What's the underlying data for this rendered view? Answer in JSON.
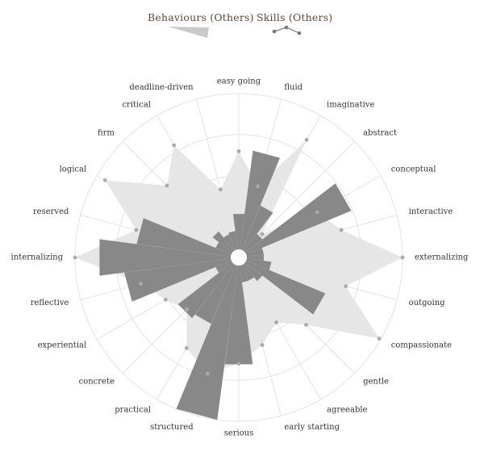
{
  "legend": {
    "behaviours_label": "Behaviours (Others)",
    "skills_label": "Skills (Others)"
  },
  "colors": {
    "area": "#e6e6e6",
    "bar": "#888888",
    "dot": "#aaaaaa",
    "grid": "#e3e3e3",
    "text": "#333333"
  },
  "chart_data": {
    "type": "radar",
    "axes": [
      "easy going",
      "fluid",
      "imaginative",
      "abstract",
      "conceptual",
      "interactive",
      "externalizing",
      "outgoing",
      "compassionate",
      "gentle",
      "agreeable",
      "early starting",
      "serious",
      "structured",
      "practical",
      "concrete",
      "experiential",
      "reflective",
      "internalizing",
      "reserved",
      "logical",
      "firm",
      "critical",
      "deadline-driven"
    ],
    "rmax": 10,
    "rings": 4,
    "series": [
      {
        "name": "Behaviours (Others)",
        "kind": "area",
        "values": [
          6.3,
          4.2,
          8.2,
          1.6,
          5.3,
          6.3,
          10.0,
          6.6,
          9.9,
          5.6,
          4.3,
          5.3,
          6.3,
          7.2,
          6.2,
          4.2,
          4.9,
          6.0,
          10.0,
          6.3,
          9.4,
          6.0,
          7.8,
          4.0
        ]
      },
      {
        "name": "Skills (Others)",
        "kind": "bar",
        "values": [
          2.3,
          6.4,
          3.1,
          1.4,
          7.3,
          1.1,
          1.1,
          1.6,
          5.5,
          1.4,
          1.1,
          1.1,
          6.4,
          10.0,
          4.1,
          4.4,
          1.1,
          6.9,
          8.5,
          6.1,
          1.1,
          1.6,
          1.1,
          1.2
        ]
      }
    ]
  }
}
